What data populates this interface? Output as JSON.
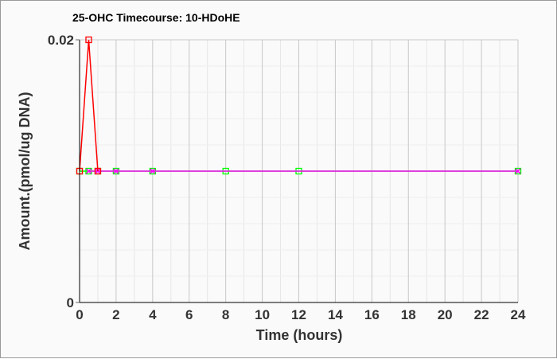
{
  "chart_data": {
    "type": "line",
    "title": "25-OHC Timecourse: 10-HDoHE",
    "xlabel": "Time (hours)",
    "ylabel": "Amount.(pmol/ug DNA)",
    "xlim": [
      0,
      24
    ],
    "ylim": [
      0,
      0.02
    ],
    "xticks": [
      0,
      2,
      4,
      6,
      8,
      10,
      12,
      14,
      16,
      18,
      20,
      22,
      24
    ],
    "yticks": [
      0,
      0.02
    ],
    "ytick_labels": [
      "0",
      "0.02"
    ],
    "grid": true,
    "series": [
      {
        "color": "#00ff00",
        "marker": "square",
        "x": [
          0,
          0.5,
          1,
          2,
          4,
          8,
          12,
          24
        ],
        "y": [
          0.01,
          0.01,
          0.01,
          0.01,
          0.01,
          0.01,
          0.01,
          0.01
        ]
      },
      {
        "color": "#ff00ff",
        "marker": "x",
        "x": [
          0.5,
          1,
          2,
          4,
          24
        ],
        "y": [
          0.01,
          0.01,
          0.01,
          0.01,
          0.01
        ]
      },
      {
        "color": "#ff0000",
        "marker": "square",
        "x": [
          0,
          0.5,
          1
        ],
        "y": [
          0.01,
          0.02,
          0.01
        ]
      }
    ]
  }
}
